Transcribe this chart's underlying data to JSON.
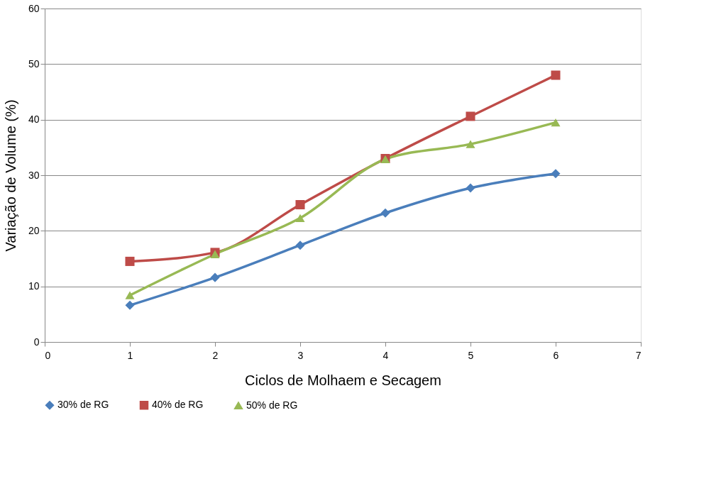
{
  "chart_data": {
    "type": "line",
    "xlabel": "Ciclos de Molhaem e Secagem",
    "ylabel": "Variação de Volume (%)",
    "x": [
      1,
      2,
      3,
      4,
      5,
      6
    ],
    "xlim": [
      0,
      7
    ],
    "xticks": [
      0,
      1,
      2,
      3,
      4,
      5,
      6,
      7
    ],
    "ylim": [
      0,
      60
    ],
    "yticks": [
      0,
      10,
      20,
      30,
      40,
      50,
      60
    ],
    "grid": "y",
    "legend": "bottom",
    "series": [
      {
        "name": "30% de RG",
        "color": "#4a7ebb",
        "marker": "diamond",
        "values": [
          6.6,
          11.6,
          17.4,
          23.2,
          27.7,
          30.3
        ]
      },
      {
        "name": "40% de RG",
        "color": "#be4b48",
        "marker": "square",
        "values": [
          14.5,
          16.1,
          24.7,
          33.0,
          40.6,
          48.0
        ]
      },
      {
        "name": "50% de RG",
        "color": "#98b954",
        "marker": "triangle",
        "values": [
          8.4,
          15.8,
          22.3,
          32.9,
          35.6,
          39.5
        ]
      }
    ]
  }
}
